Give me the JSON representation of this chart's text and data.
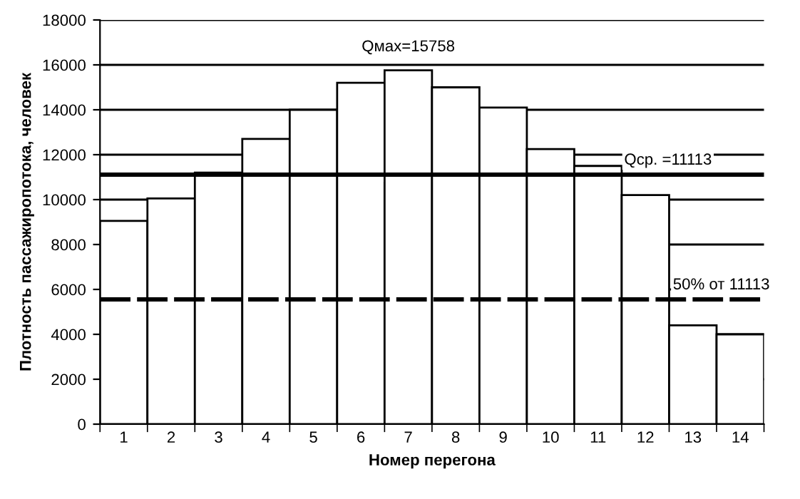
{
  "chart_data": {
    "type": "bar",
    "xlabel": "Номер перегона",
    "ylabel": "Плотность пассажиропотока, человек",
    "categories": [
      "1",
      "2",
      "3",
      "4",
      "5",
      "6",
      "7",
      "8",
      "9",
      "10",
      "11",
      "12",
      "13",
      "14"
    ],
    "series": [
      {
        "color": "#ffffff",
        "values": [
          9050,
          10050,
          11200,
          12700,
          14000,
          15200,
          15758,
          15000,
          14100,
          12250,
          11500,
          10200,
          4400,
          4000
        ]
      }
    ],
    "ylim": [
      0,
      18000
    ],
    "yticks": [
      0,
      2000,
      4000,
      6000,
      8000,
      10000,
      12000,
      14000,
      16000,
      18000
    ],
    "grid": "y",
    "annotations": [
      {
        "text": "Qмах=15758",
        "x": "7",
        "y": 15758
      }
    ],
    "ref_lines": [
      {
        "axis": "y",
        "value": 11113,
        "label": "Qср. =11113",
        "color": "#000000",
        "line_style": "solid"
      },
      {
        "axis": "y",
        "value": 5556.5,
        "label": "50% от 11113",
        "color": "#000000",
        "line_style": "dashed"
      }
    ]
  }
}
